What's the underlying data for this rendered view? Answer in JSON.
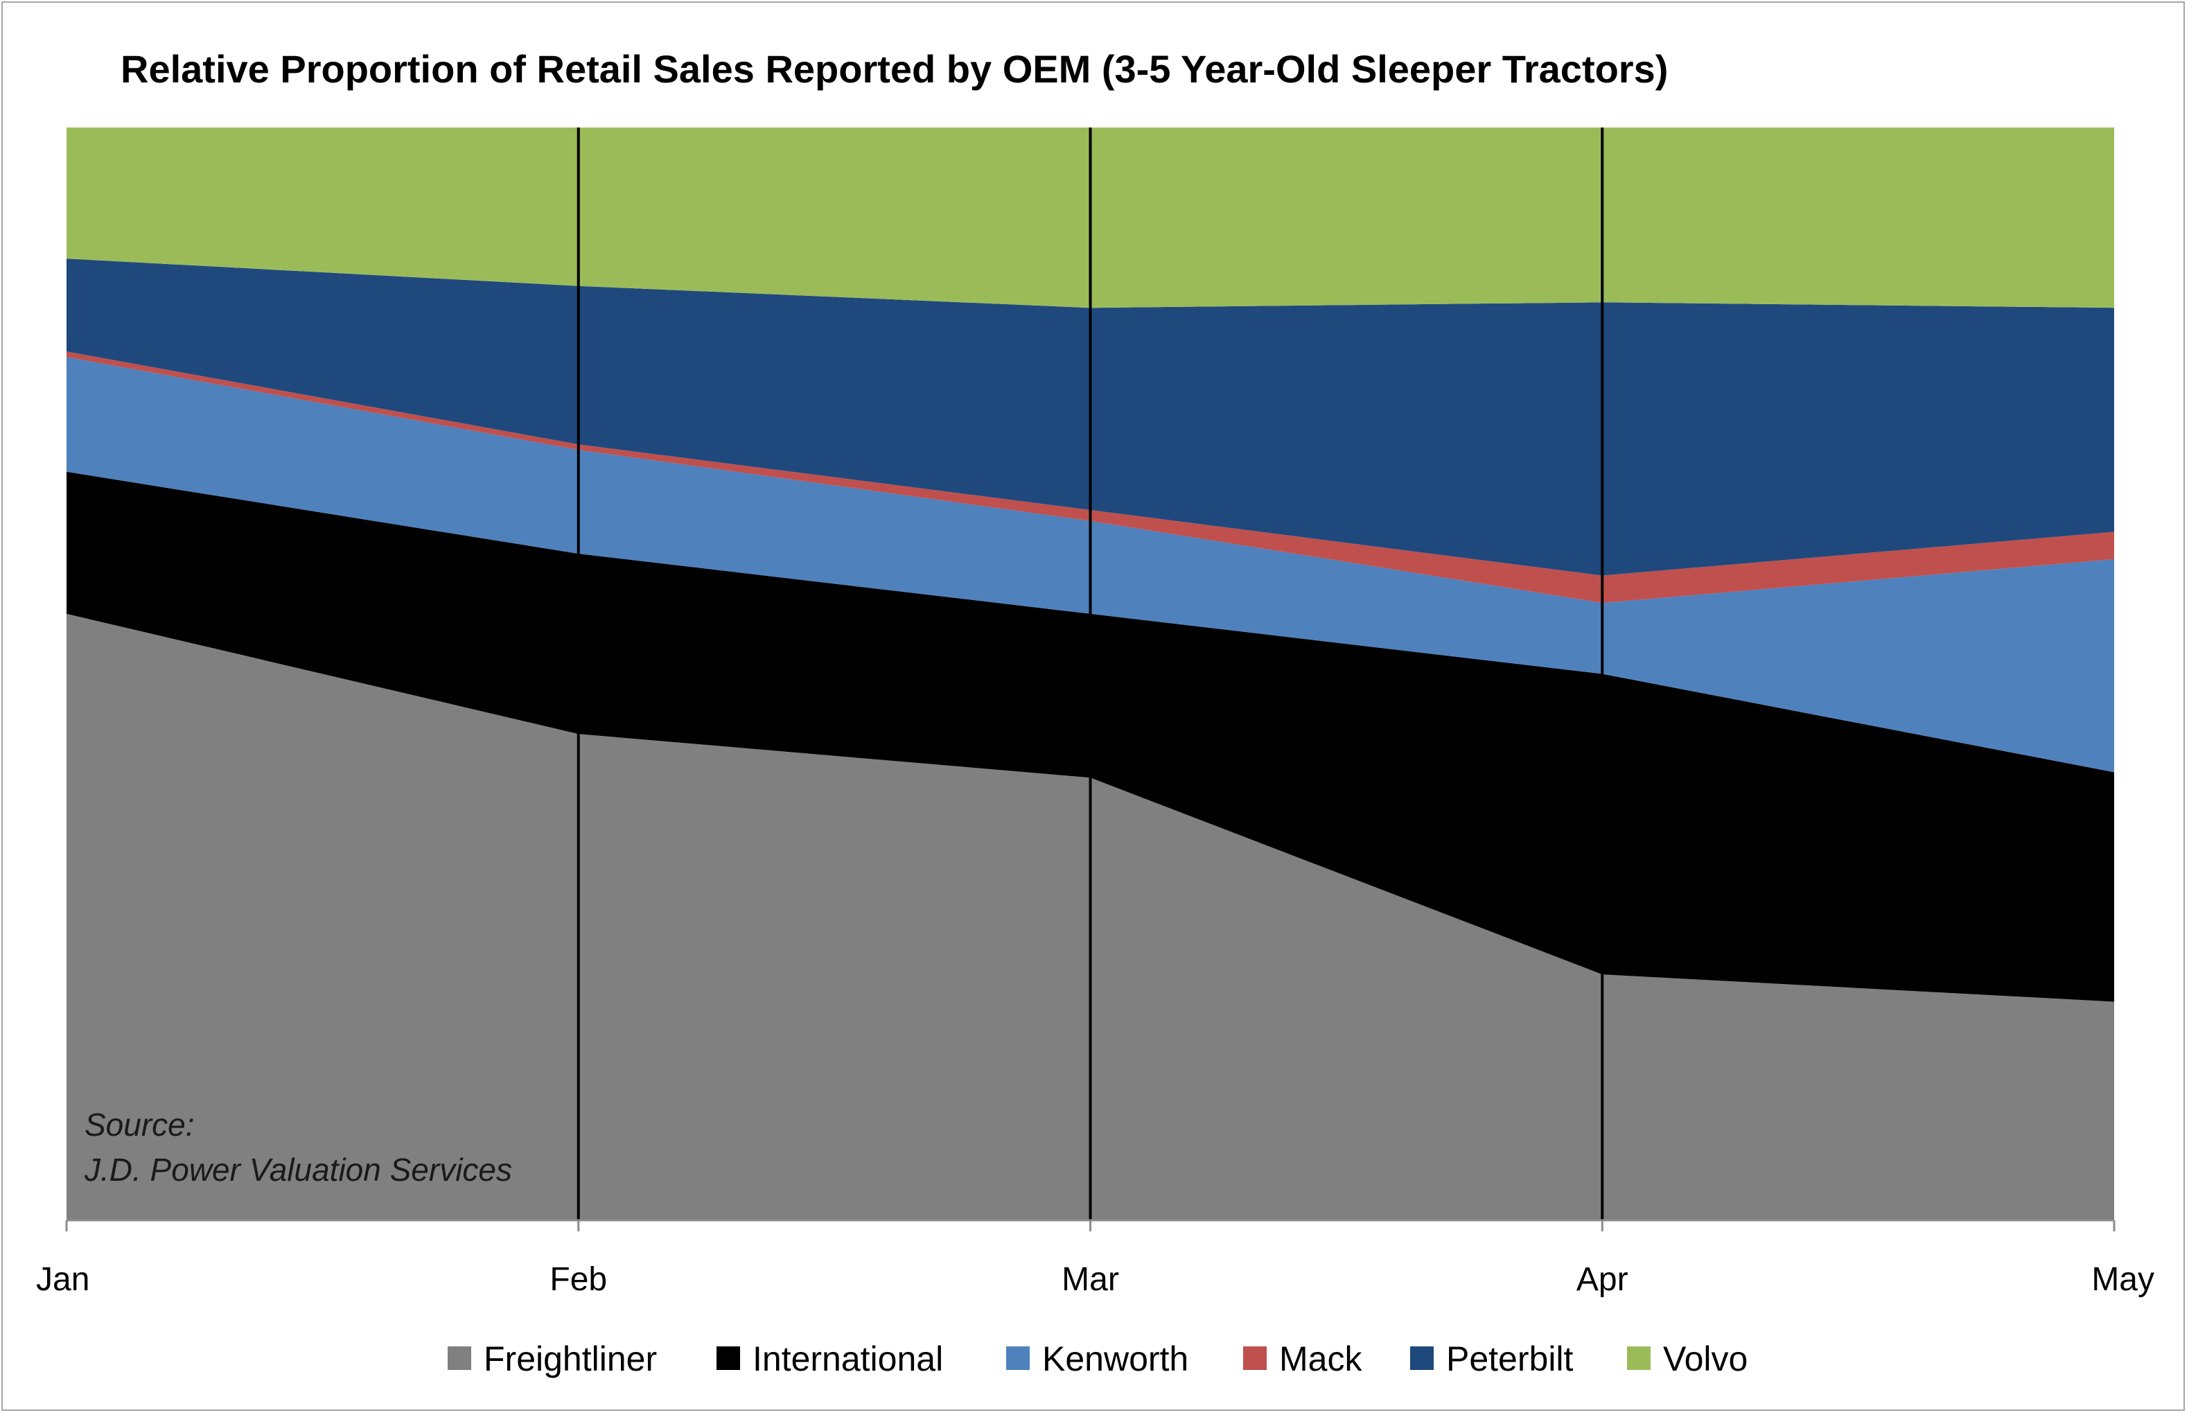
{
  "chart_data": {
    "type": "area",
    "stacked": true,
    "percent": true,
    "title": "Relative Proportion of Retail Sales Reported by OEM (3-5 Year-Old Sleeper Tractors)",
    "categories": [
      "Jan",
      "Feb",
      "Mar",
      "Apr",
      "May"
    ],
    "xlabel": "",
    "ylabel": "",
    "ylim": [
      0,
      100
    ],
    "grid": "vertical",
    "legend": "bottom",
    "annotation": [
      "Source:",
      "J.D. Power Valuation Services"
    ],
    "series": [
      {
        "name": "Freightliner",
        "color": "#808080",
        "values": [
          55.5,
          44.5,
          40.5,
          22.5,
          20
        ]
      },
      {
        "name": "International",
        "color": "#000000",
        "values": [
          13.0,
          16.5,
          15.0,
          27.5,
          21
        ]
      },
      {
        "name": "Kenworth",
        "color": "#4f81bd",
        "values": [
          10.5,
          9.5,
          8.5,
          6.5,
          19.5
        ]
      },
      {
        "name": "Mack",
        "color": "#c0504d",
        "values": [
          0.5,
          0.5,
          1.0,
          2.5,
          2.5
        ]
      },
      {
        "name": "Peterbilt",
        "color": "#1f497d",
        "values": [
          8.5,
          14.5,
          18.5,
          25,
          20.5
        ]
      },
      {
        "name": "Volvo",
        "color": "#9bbb59",
        "values": [
          12.0,
          14.5,
          16.5,
          16,
          16.5
        ]
      }
    ]
  }
}
